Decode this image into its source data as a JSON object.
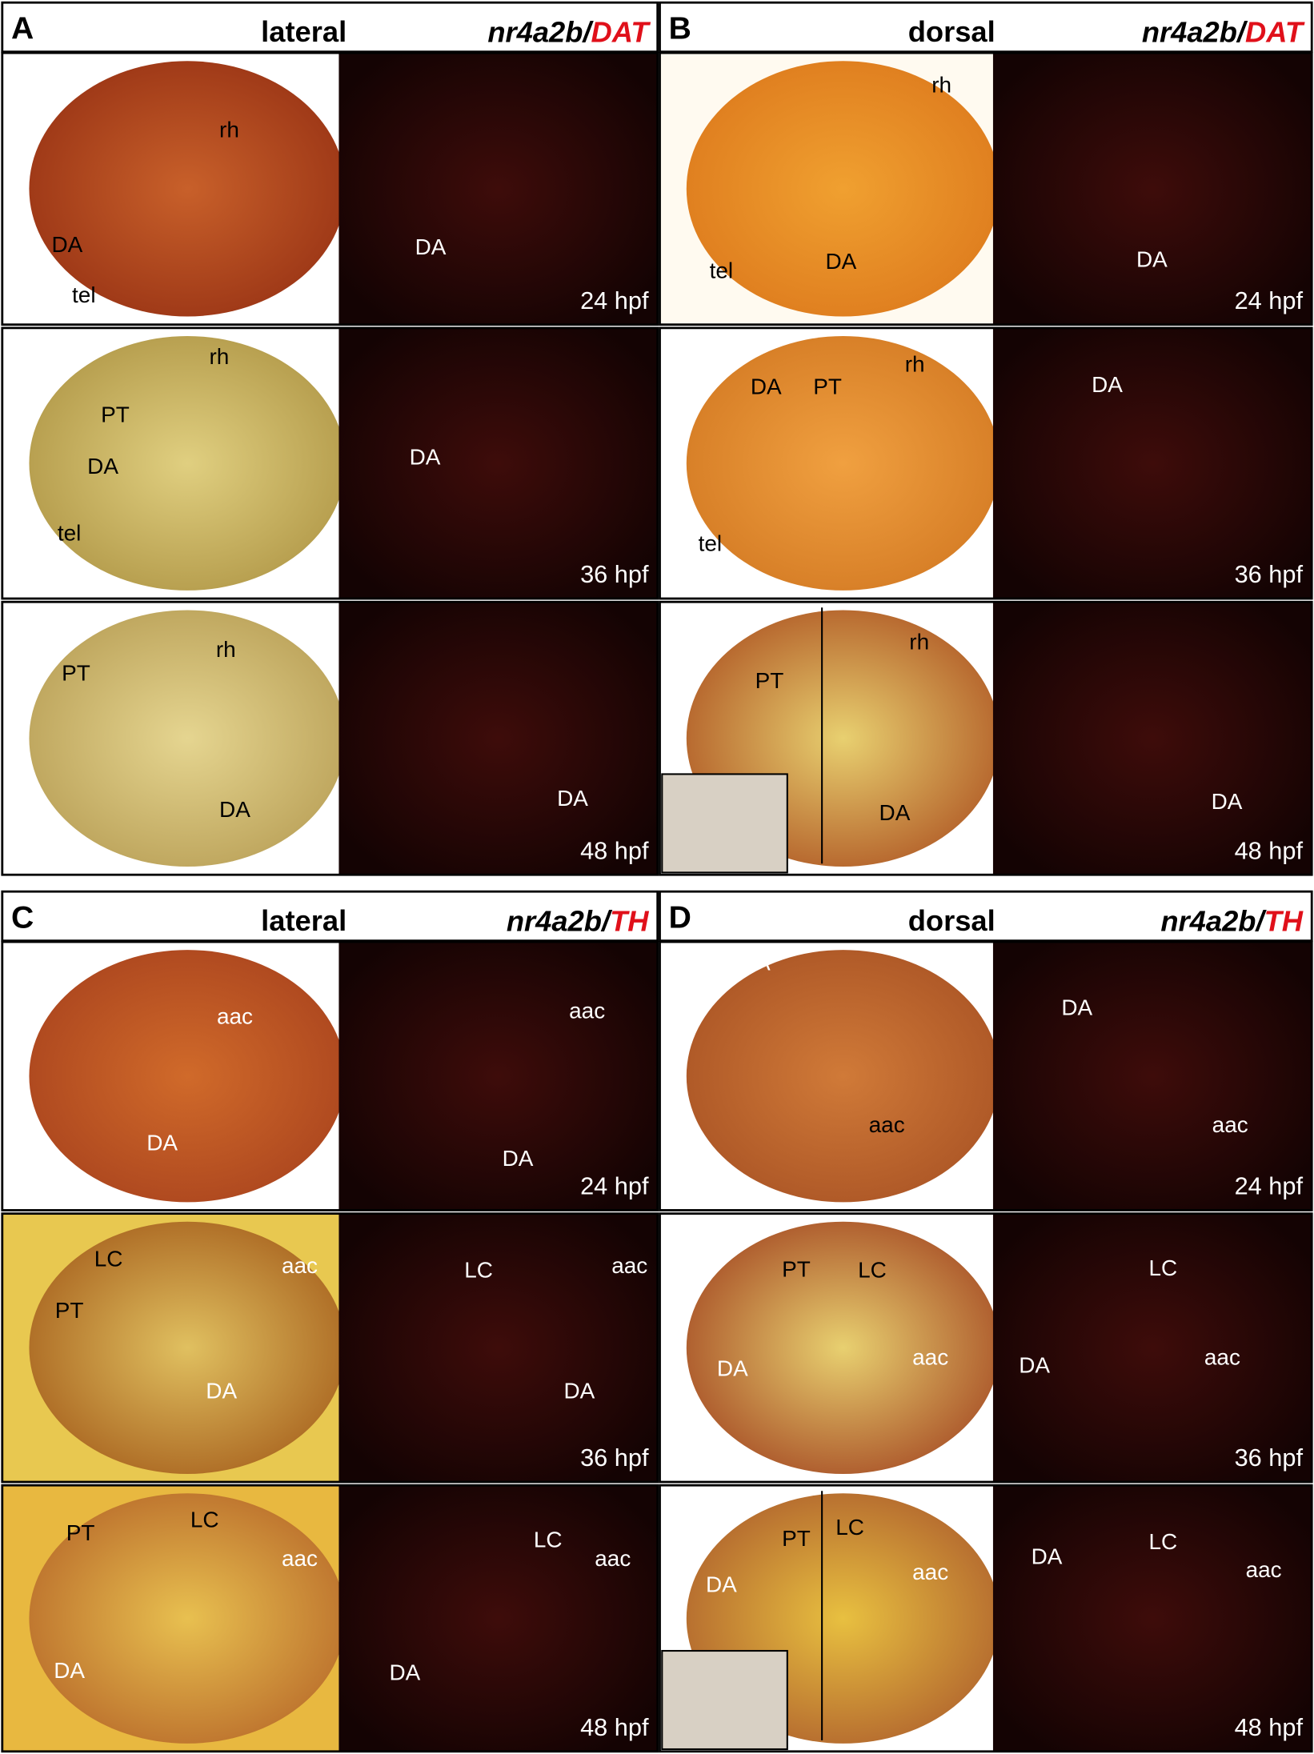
{
  "panels": [
    {
      "letter": "A",
      "view": "lateral",
      "gene": "nr4a2b/",
      "marker": "DAT",
      "rows": [
        {
          "left": [
            "rh",
            "DA",
            "tel"
          ],
          "right": [
            "DA"
          ],
          "stage": "24 hpf"
        },
        {
          "left": [
            "rh",
            "PT",
            "DA",
            "tel"
          ],
          "right": [
            "DA"
          ],
          "stage": "36 hpf"
        },
        {
          "left": [
            "rh",
            "PT",
            "DA"
          ],
          "right": [
            "DA"
          ],
          "stage": "48 hpf"
        }
      ]
    },
    {
      "letter": "B",
      "view": "dorsal",
      "gene": "nr4a2b/",
      "marker": "DAT",
      "rows": [
        {
          "left": [
            "rh",
            "tel",
            "DA"
          ],
          "right": [
            "DA"
          ],
          "stage": "24 hpf"
        },
        {
          "left": [
            "DA",
            "PT",
            "rh",
            "tel"
          ],
          "right": [
            "DA"
          ],
          "stage": "36 hpf"
        },
        {
          "left": [
            "PT",
            "rh",
            "DA"
          ],
          "right": [
            "DA"
          ],
          "stage": "48 hpf"
        }
      ]
    },
    {
      "letter": "C",
      "view": "lateral",
      "gene": "nr4a2b/",
      "marker": "TH",
      "rows": [
        {
          "left": [
            "aac",
            "DA"
          ],
          "right": [
            "aac",
            "DA"
          ],
          "stage": "24 hpf"
        },
        {
          "left": [
            "LC",
            "PT",
            "aac",
            "DA"
          ],
          "right": [
            "LC",
            "aac",
            "DA"
          ],
          "stage": "36 hpf"
        },
        {
          "left": [
            "PT",
            "LC",
            "aac",
            "DA"
          ],
          "right": [
            "LC",
            "aac",
            "DA"
          ],
          "stage": "48 hpf"
        }
      ]
    },
    {
      "letter": "D",
      "view": "dorsal",
      "gene": "nr4a2b/",
      "marker": "TH",
      "rows": [
        {
          "left": [
            "DA",
            "aac"
          ],
          "right": [
            "DA",
            "aac"
          ],
          "stage": "24 hpf"
        },
        {
          "left": [
            "PT",
            "LC",
            "aac",
            "DA"
          ],
          "right": [
            "LC",
            "aac",
            "DA"
          ],
          "stage": "36 hpf"
        },
        {
          "left": [
            "PT",
            "LC",
            "DA",
            "aac"
          ],
          "right": [
            "LC",
            "DA",
            "aac"
          ],
          "stage": "48 hpf"
        }
      ]
    }
  ]
}
